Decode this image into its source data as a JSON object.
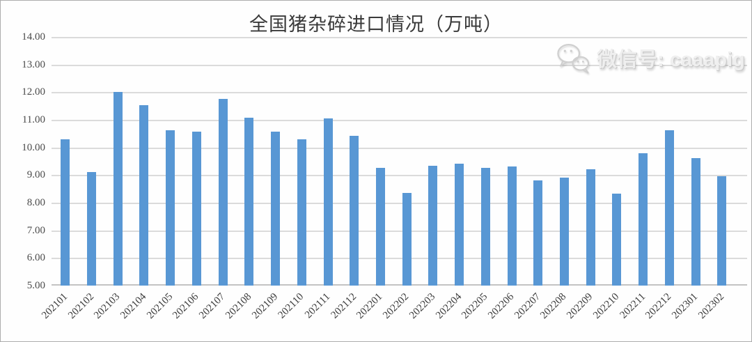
{
  "chart_data": {
    "type": "bar",
    "title": "全国猪杂碎进口情况（万吨）",
    "xlabel": "",
    "ylabel": "",
    "categories": [
      "202101",
      "202102",
      "202103",
      "202104",
      "202105",
      "202106",
      "202107",
      "202108",
      "202109",
      "202110",
      "202111",
      "202112",
      "202201",
      "202202",
      "202203",
      "202204",
      "202205",
      "202206",
      "202207",
      "202208",
      "202209",
      "202210",
      "202211",
      "202212",
      "202301",
      "202302"
    ],
    "values": [
      10.3,
      9.1,
      12.0,
      11.52,
      10.63,
      10.57,
      11.75,
      11.08,
      10.57,
      10.3,
      11.05,
      10.42,
      9.25,
      8.35,
      9.33,
      9.4,
      9.25,
      9.3,
      8.8,
      8.9,
      9.22,
      8.33,
      9.8,
      10.62,
      9.62,
      8.97
    ],
    "ylim": [
      5,
      14
    ],
    "ytick_labels": [
      "14.00",
      "13.00",
      "12.00",
      "11.00",
      "10.00",
      "9.00",
      "8.00",
      "7.00",
      "6.00",
      "5.00"
    ],
    "grid": true,
    "legend_position": "none",
    "bar_color": "#5897D4",
    "gridline_color": "#DBDBDB",
    "axis_line_color": "#C3C3C3"
  },
  "watermark": {
    "icon": "wechat-icon",
    "text": "微信号: caaapig"
  }
}
